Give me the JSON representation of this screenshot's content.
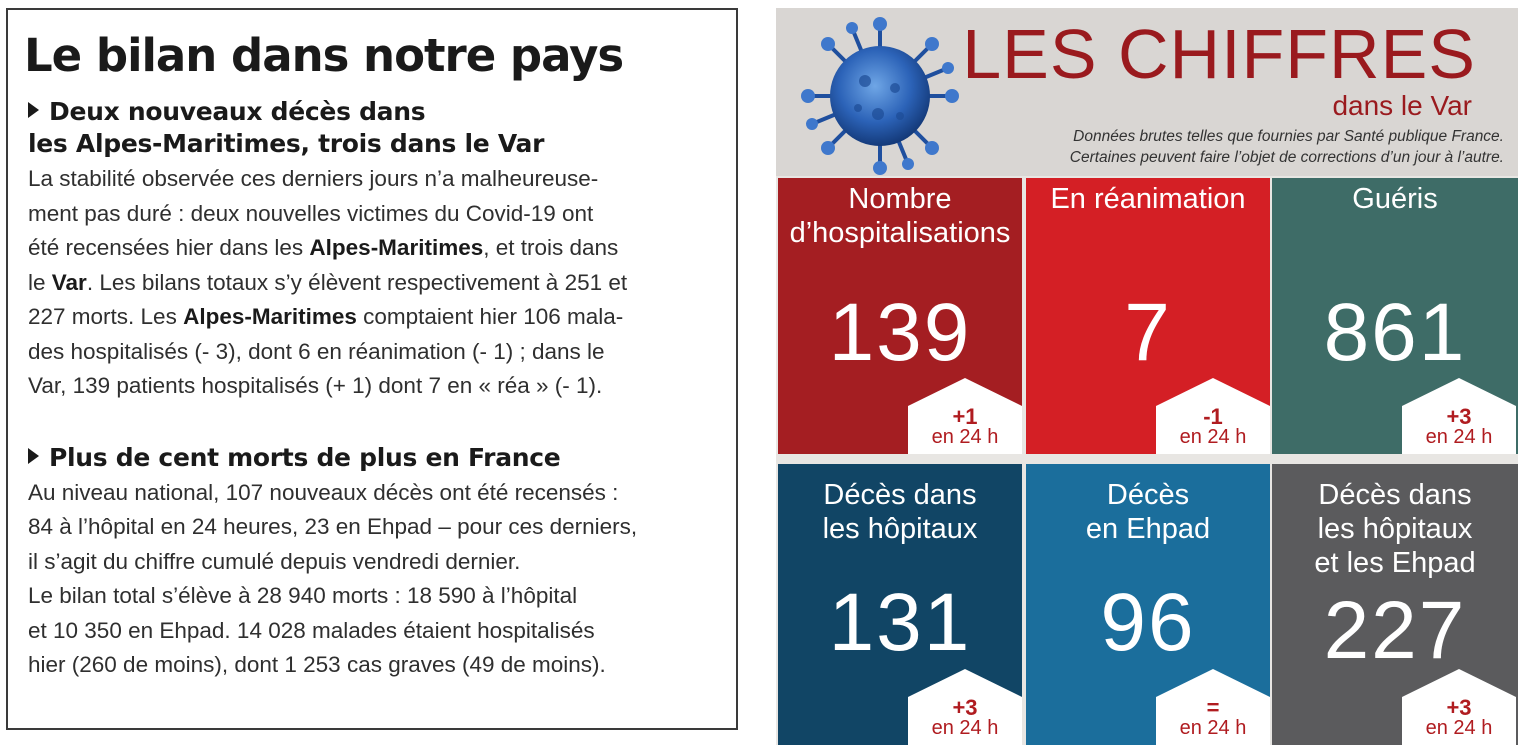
{
  "article": {
    "title": "Le bilan dans notre pays",
    "section1": {
      "heading_line1": "Deux nouveaux décès dans",
      "heading_line2": "les Alpes-Maritimes, trois dans le Var",
      "l1": "La stabilité observée ces derniers jours n’a malheureuse-",
      "l2": "ment pas duré : deux nouvelles victimes du Covid-19 ont",
      "l3a": "été recensées hier dans les ",
      "l3b": "Alpes-Maritimes",
      "l3c": ", et trois dans",
      "l4a": "le ",
      "l4b": "Var",
      "l4c": ". Les bilans totaux s’y élèvent respectivement à 251 et",
      "l5a": "227 morts. Les ",
      "l5b": "Alpes-Maritimes",
      "l5c": " comptaient hier 106 mala-",
      "l6": "des hospitalisés (- 3), dont 6 en réanimation (- 1) ; dans le",
      "l7": "Var, 139 patients hospitalisés (+ 1) dont 7 en « réa » (- 1)."
    },
    "section2": {
      "heading": "Plus de cent morts de plus en France",
      "l1": "Au niveau national, 107 nouveaux décès ont été recensés :",
      "l2": "84 à l’hôpital en 24 heures, 23 en Ehpad – pour ces derniers,",
      "l3": "il s’agit du chiffre cumulé depuis vendredi dernier.",
      "l4": "Le bilan total s’élève à 28 940 morts : 18 590 à l’hôpital",
      "l5": "et 10 350 en Ehpad. 14 028 malades étaient hospitalisés",
      "l6": "hier (260 de moins), dont 1 253 cas graves (49 de moins)."
    }
  },
  "infographic": {
    "title": "LES CHIFFRES",
    "subtitle": "dans le Var",
    "note_line1": "Données brutes telles que fournies par Santé publique France.",
    "note_line2": "Certaines peuvent faire l’objet de corrections d’un jour à l’autre.",
    "colors": {
      "title": "#9a1a1e",
      "hospitalisations": "#a41e22",
      "reanimation": "#d41f25",
      "gueris": "#3e6c67",
      "deces_hopitaux": "#114565",
      "deces_ehpad": "#1b6e9c",
      "deces_total": "#5b5b5d"
    },
    "tiles": [
      {
        "label_l1": "Nombre",
        "label_l2": "d’hospitalisations",
        "value": "139",
        "delta": "+1",
        "unit": "en 24 h"
      },
      {
        "label_l1": "En réanimation",
        "value": "7",
        "delta": "-1",
        "unit": "en 24 h"
      },
      {
        "label_l1": "Guéris",
        "value": "861",
        "delta": "+3",
        "unit": "en 24 h"
      },
      {
        "label_l1": "Décès dans",
        "label_l2": "les hôpitaux",
        "value": "131",
        "delta": "+3",
        "unit": "en 24 h"
      },
      {
        "label_l1": "Décès",
        "label_l2": "en Ehpad",
        "value": "96",
        "delta": "=",
        "unit": "en 24 h"
      },
      {
        "label_l1": "Décès dans",
        "label_l2": "les hôpitaux",
        "label_l3": "et les Ehpad",
        "value": "227",
        "delta": "+3",
        "unit": "en 24 h"
      }
    ]
  }
}
